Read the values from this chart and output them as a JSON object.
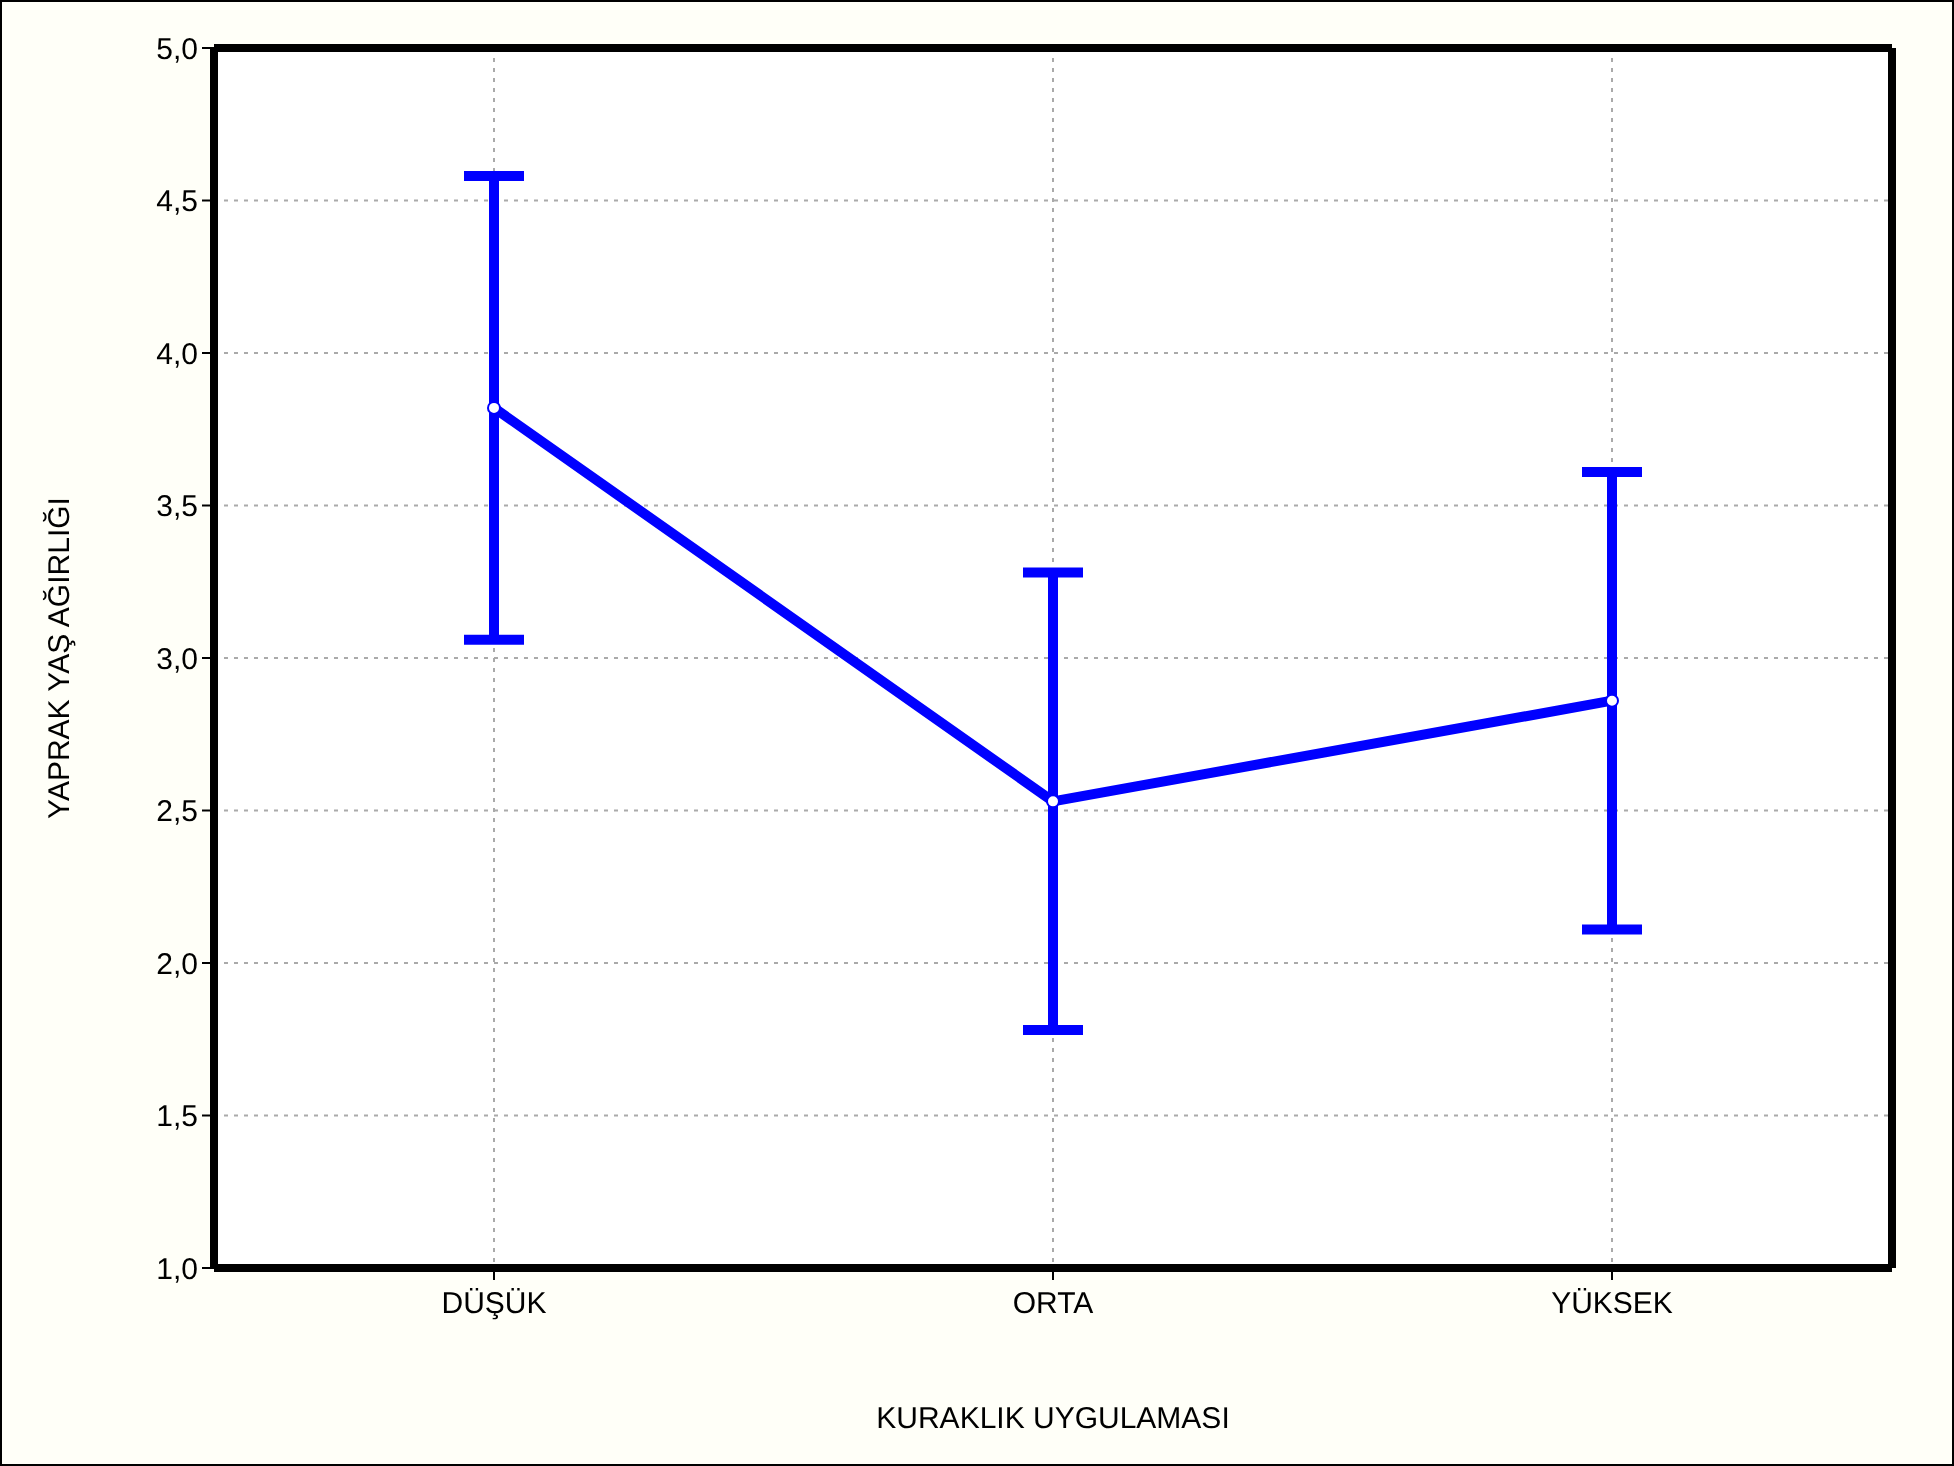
{
  "chart_data": {
    "type": "line",
    "xlabel": "KURAKLIK UYGULAMASI",
    "ylabel": "YAPRAK YAŞ AĞIRLIĞI",
    "categories": [
      "DÜŞÜK",
      "ORTA",
      "YÜKSEK"
    ],
    "series": [
      {
        "color": "#0000ff",
        "values": [
          3.82,
          2.53,
          2.86
        ],
        "errors": [
          0.76,
          0.75,
          0.75
        ]
      }
    ],
    "ylim": [
      1,
      5
    ],
    "yticks": [
      {
        "value": 1,
        "label": "1,0"
      },
      {
        "value": 1.5,
        "label": "1,5"
      },
      {
        "value": 2,
        "label": "2,0"
      },
      {
        "value": 2.5,
        "label": "2,5"
      },
      {
        "value": 3,
        "label": "3,0"
      },
      {
        "value": 3.5,
        "label": "3,5"
      },
      {
        "value": 4,
        "label": "4,0"
      },
      {
        "value": 4.5,
        "label": "4,5"
      },
      {
        "value": 5,
        "label": "5,0"
      }
    ],
    "grid": true,
    "marker": "circle",
    "line_style": "solid"
  }
}
